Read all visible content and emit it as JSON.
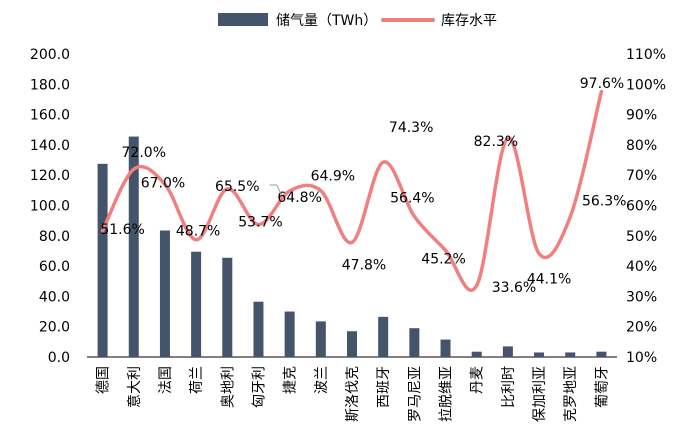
{
  "chart_data": {
    "type": "bar+line",
    "categories": [
      "德国",
      "意大利",
      "法国",
      "荷兰",
      "奥地利",
      "匈牙利",
      "捷克",
      "波兰",
      "斯洛伐克",
      "西班牙",
      "罗马尼亚",
      "拉脱维亚",
      "丹麦",
      "比利时",
      "保加利亚",
      "克罗地亚",
      "葡萄牙"
    ],
    "series": [
      {
        "name": "储气量（TWh）",
        "type": "bar",
        "axis": "left",
        "color": "#44546A",
        "values": [
          127.5,
          145.5,
          83.5,
          69.5,
          65.5,
          36.5,
          30,
          23.5,
          17,
          26.5,
          19,
          11.5,
          3.5,
          7,
          3,
          3,
          3.5
        ]
      },
      {
        "name": "库存水平",
        "type": "line",
        "axis": "right",
        "color": "#F08080",
        "values": [
          51.6,
          72.0,
          67.0,
          48.7,
          65.5,
          53.7,
          64.8,
          64.9,
          47.8,
          74.3,
          56.4,
          45.2,
          33.6,
          82.3,
          44.1,
          56.3,
          97.6
        ],
        "labels": [
          "51.6%",
          "72.0%",
          "67.0%",
          "48.7%",
          "65.5%",
          "53.7%",
          "64.8%",
          "64.9%",
          "47.8%",
          "74.3%",
          "56.4%",
          "45.2%",
          "33.6%",
          "82.3%",
          "44.1%",
          "56.3%",
          "97.6%"
        ]
      }
    ],
    "y_left": {
      "min": 0,
      "max": 200,
      "step": 20,
      "ticks": [
        "0.0",
        "20.0",
        "40.0",
        "60.0",
        "80.0",
        "100.0",
        "120.0",
        "140.0",
        "160.0",
        "180.0",
        "200.0"
      ]
    },
    "y_right": {
      "min": 10,
      "max": 110,
      "step": 10,
      "ticks": [
        "10%",
        "20%",
        "30%",
        "40%",
        "50%",
        "60%",
        "70%",
        "80%",
        "90%",
        "100%",
        "110%"
      ]
    },
    "legend_position": "top",
    "grid": false
  }
}
